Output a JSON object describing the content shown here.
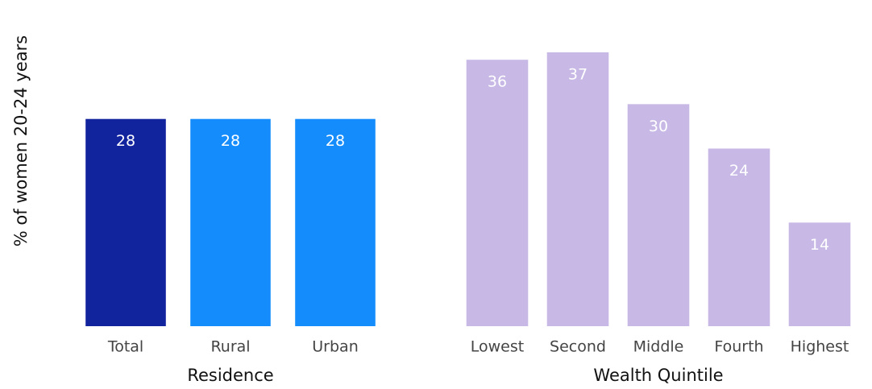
{
  "chart_data": [
    {
      "type": "bar",
      "ylabel": "% of women 20-24 years",
      "xlabel": "Residence",
      "categories": [
        "Total",
        "Rural",
        "Urban"
      ],
      "values": [
        28,
        28,
        28
      ],
      "colors": [
        "#12239e",
        "#148cfc",
        "#148cfc"
      ]
    },
    {
      "type": "bar",
      "xlabel": "Wealth Quintile",
      "categories": [
        "Lowest",
        "Second",
        "Middle",
        "Fourth",
        "Highest"
      ],
      "values": [
        36,
        37,
        30,
        24,
        14
      ],
      "colors": [
        "#c8b8e6",
        "#c8b8e6",
        "#c8b8e6",
        "#c8b8e6",
        "#c8b8e6"
      ]
    }
  ]
}
